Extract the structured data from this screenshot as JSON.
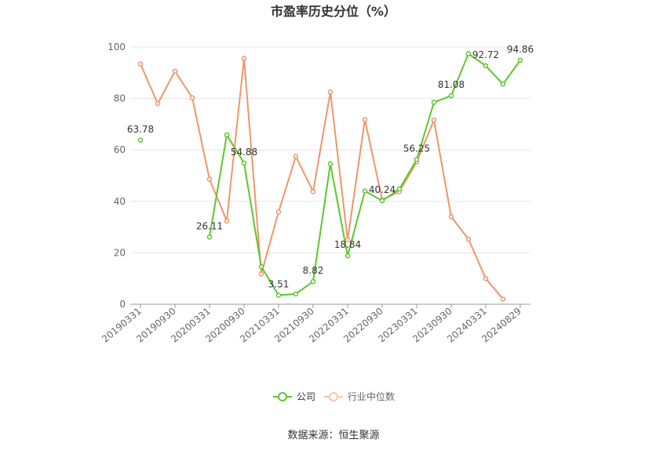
{
  "chart_data": {
    "type": "line",
    "title": "市盈率历史分位（%）",
    "source": "数据来源：恒生聚源",
    "ylim": [
      0,
      100
    ],
    "y_ticks": [
      "0",
      "20",
      "40",
      "60",
      "80",
      "100"
    ],
    "grid": true,
    "legend_position": "bottom",
    "x": [
      "20190331",
      "20190630",
      "20190930",
      "20191231",
      "20200331",
      "20200630",
      "20200930",
      "20201231",
      "20210331",
      "20210630",
      "20210930",
      "20211231",
      "20220331",
      "20220630",
      "20220930",
      "20221231",
      "20230331",
      "20230630",
      "20230930",
      "20231231",
      "20240331",
      "20240630",
      "20240829"
    ],
    "x_tick_labels": [
      "20190331",
      "20190930",
      "20200331",
      "20200930",
      "20210331",
      "20210930",
      "20220331",
      "20220930",
      "20230331",
      "20230930",
      "20240331",
      "20240829"
    ],
    "series": [
      {
        "name": "公司",
        "color": "#5cc72e",
        "values": [
          63.78,
          null,
          null,
          null,
          26.11,
          65.8,
          54.88,
          14.6,
          3.51,
          4.0,
          8.82,
          54.6,
          18.84,
          44.0,
          40.24,
          44.8,
          56.25,
          78.5,
          81.08,
          97.4,
          92.72,
          85.6,
          94.86
        ],
        "labels": [
          "63.78",
          "",
          "",
          "",
          "26.11",
          "",
          "54.88",
          "",
          "3.51",
          "",
          "8.82",
          "",
          "18.84",
          "",
          "40.24",
          "",
          "56.25",
          "",
          "81.08",
          "",
          "92.72",
          "",
          "94.86"
        ]
      },
      {
        "name": "行业中位数",
        "color": "#f0956a",
        "values": [
          93.4,
          78.0,
          90.6,
          80.3,
          48.6,
          32.4,
          95.6,
          11.8,
          35.9,
          57.5,
          43.8,
          82.5,
          25.0,
          71.8,
          40.6,
          43.8,
          55.3,
          71.6,
          34.0,
          25.3,
          10.0,
          2.0,
          null
        ]
      }
    ]
  }
}
